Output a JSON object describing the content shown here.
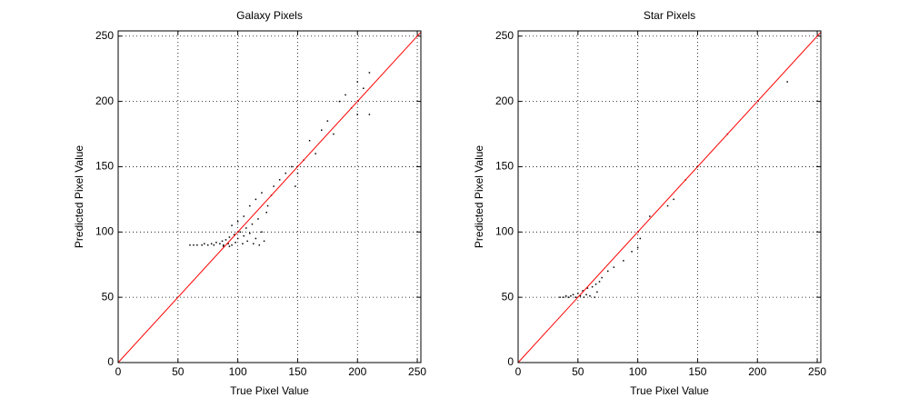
{
  "chart_data": [
    {
      "type": "scatter",
      "title": "Galaxy Pixels",
      "x_label": "True Pixel Value",
      "y_label": "Predicted Pixel Value",
      "xlim": [
        0,
        253
      ],
      "ylim": [
        0,
        254
      ],
      "xticks": [
        0,
        50,
        100,
        150,
        200,
        250
      ],
      "yticks": [
        0,
        50,
        100,
        150,
        200,
        250
      ],
      "grid": true,
      "series": [
        {
          "type": "scatter",
          "color": "#000000",
          "x": [
            60,
            63,
            66,
            70,
            72,
            75,
            78,
            80,
            82,
            85,
            87,
            88,
            90,
            92,
            93,
            95,
            97,
            98,
            100,
            102,
            104,
            105,
            107,
            108,
            110,
            112,
            113,
            115,
            117,
            118,
            120,
            122,
            124,
            110,
            105,
            100,
            95,
            115,
            120,
            125,
            130,
            128,
            135,
            140,
            145,
            150,
            148,
            155,
            160,
            165,
            170,
            175,
            180,
            185,
            190,
            195,
            200,
            205,
            210,
            210,
            200,
            93,
            88
          ],
          "values": [
            90,
            90,
            90,
            90,
            91,
            90,
            91,
            90,
            92,
            91,
            93,
            90,
            94,
            91,
            96,
            90,
            98,
            92,
            95,
            100,
            91,
            97,
            103,
            93,
            99,
            106,
            91,
            95,
            110,
            90,
            100,
            93,
            115,
            120,
            112,
            108,
            105,
            125,
            130,
            120,
            135,
            128,
            140,
            145,
            150,
            145,
            135,
            155,
            170,
            160,
            178,
            185,
            175,
            200,
            205,
            195,
            215,
            210,
            190,
            222,
            190,
            89,
            89
          ]
        },
        {
          "type": "line",
          "color": "#ff0000",
          "x": [
            0,
            253
          ],
          "values": [
            0,
            253
          ]
        }
      ]
    },
    {
      "type": "scatter",
      "title": "Star Pixels",
      "x_label": "True Pixel Value",
      "y_label": "Predicted Pixel Value",
      "xlim": [
        0,
        253
      ],
      "ylim": [
        0,
        254
      ],
      "xticks": [
        0,
        50,
        100,
        150,
        200,
        250
      ],
      "yticks": [
        0,
        50,
        100,
        150,
        200,
        250
      ],
      "grid": true,
      "series": [
        {
          "type": "scatter",
          "color": "#000000",
          "x": [
            35,
            38,
            40,
            42,
            44,
            46,
            48,
            50,
            52,
            54,
            55,
            57,
            58,
            60,
            62,
            64,
            65,
            66,
            68,
            70,
            75,
            80,
            88,
            95,
            100,
            102,
            110,
            125,
            130,
            140,
            150,
            175,
            225
          ],
          "values": [
            50,
            50,
            51,
            50,
            51,
            52,
            50,
            53,
            51,
            55,
            50,
            52,
            57,
            51,
            58,
            50,
            60,
            54,
            62,
            65,
            70,
            73,
            78,
            85,
            88,
            95,
            112,
            120,
            125,
            140,
            150,
            175,
            215
          ]
        },
        {
          "type": "line",
          "color": "#ff0000",
          "x": [
            0,
            253
          ],
          "values": [
            0,
            253
          ]
        }
      ]
    }
  ]
}
